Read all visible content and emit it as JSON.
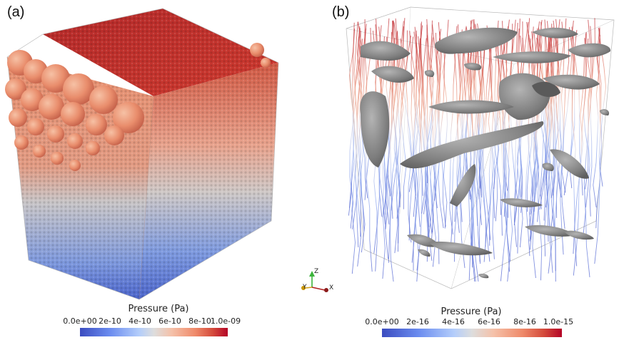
{
  "panels": {
    "a": {
      "label": "(a)",
      "colorbar": {
        "title": "Pressure  (Pa)",
        "ticks": [
          "0.0e+00",
          "2e-10",
          "4e-10",
          "6e-10",
          "8e-10",
          "1.0e-09"
        ]
      }
    },
    "b": {
      "label": "(b)",
      "colorbar": {
        "title": "Pressure (Pa)",
        "ticks": [
          "0.0e+00",
          "2e-16",
          "4e-16",
          "6e-16",
          "8e-16",
          "1.0e-15"
        ]
      }
    }
  },
  "orientation_axes": {
    "z": "Z",
    "y": "Y",
    "x": "X"
  },
  "colors": {
    "low": "#3b4cc0",
    "mid": "#dddddd",
    "high": "#b40426",
    "obstacle": "#8c8c8c"
  }
}
